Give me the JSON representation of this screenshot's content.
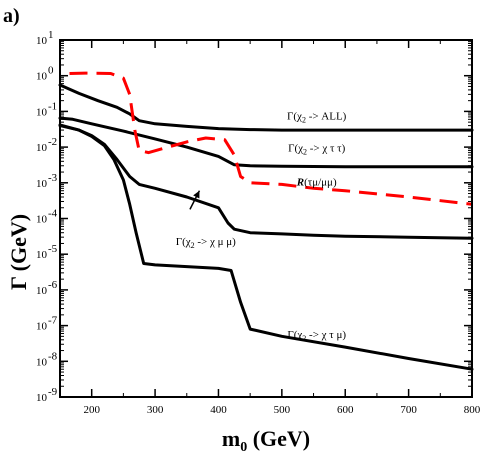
{
  "chart_data": {
    "type": "line",
    "panel_label": "a)",
    "xlabel": "m",
    "xlabel_sub": "0",
    "xlabel_unit": " (GeV)",
    "ylabel": "Γ  (GeV)",
    "xlim": [
      150,
      800
    ],
    "ylim_log10": [
      -9,
      1
    ],
    "y_scale": "log",
    "x_ticks": [
      200,
      300,
      400,
      500,
      600,
      700,
      800
    ],
    "y_ticks": [
      {
        "exp": -9,
        "label": "10",
        "sup": "-9"
      },
      {
        "exp": -8,
        "label": "10",
        "sup": "-8"
      },
      {
        "exp": -7,
        "label": "10",
        "sup": "-7"
      },
      {
        "exp": -6,
        "label": "10",
        "sup": "-6"
      },
      {
        "exp": -5,
        "label": "10",
        "sup": "-5"
      },
      {
        "exp": -4,
        "label": "10",
        "sup": "-4"
      },
      {
        "exp": -3,
        "label": "10",
        "sup": "-3"
      },
      {
        "exp": -2,
        "label": "10",
        "sup": "-2"
      },
      {
        "exp": -1,
        "label": "10",
        "sup": "-1"
      },
      {
        "exp": 0,
        "label": "10",
        "sup": "0"
      },
      {
        "exp": 1,
        "label": "10",
        "sup": "1"
      }
    ],
    "grid": false,
    "series": [
      {
        "key": "all",
        "color": "#000000",
        "dashed": false,
        "annotation": {
          "pre": "Γ(χ",
          "sub": "2",
          "post": " -> ALL)",
          "x": 555,
          "y": 0.06
        },
        "points": [
          [
            150,
            0.55
          ],
          [
            180,
            0.32
          ],
          [
            210,
            0.2
          ],
          [
            240,
            0.13
          ],
          [
            260,
            0.085
          ],
          [
            275,
            0.055
          ],
          [
            300,
            0.045
          ],
          [
            350,
            0.038
          ],
          [
            400,
            0.033
          ],
          [
            450,
            0.031
          ],
          [
            500,
            0.03
          ],
          [
            600,
            0.03
          ],
          [
            700,
            0.03
          ],
          [
            800,
            0.03
          ]
        ]
      },
      {
        "key": "tautau",
        "color": "#000000",
        "dashed": false,
        "annotation": {
          "pre": "Γ(χ",
          "sub": "2",
          "post": " -> χ τ τ)",
          "x": 555,
          "y": 0.0075
        },
        "points": [
          [
            150,
            0.065
          ],
          [
            170,
            0.06
          ],
          [
            200,
            0.045
          ],
          [
            250,
            0.028
          ],
          [
            300,
            0.017
          ],
          [
            350,
            0.01
          ],
          [
            400,
            0.0055
          ],
          [
            425,
            0.0032
          ],
          [
            450,
            0.003
          ],
          [
            500,
            0.0029
          ],
          [
            600,
            0.0028
          ],
          [
            700,
            0.0028
          ],
          [
            800,
            0.0028
          ]
        ]
      },
      {
        "key": "mumu",
        "color": "#000000",
        "dashed": false,
        "annotation": {
          "pre": "Γ(χ",
          "sub": "2",
          "post": " -> χ μ μ)",
          "x": 380,
          "y": 1.8e-05
        },
        "points": [
          [
            150,
            0.042
          ],
          [
            180,
            0.03
          ],
          [
            200,
            0.021
          ],
          [
            220,
            0.012
          ],
          [
            240,
            0.0045
          ],
          [
            260,
            0.0015
          ],
          [
            275,
            0.0009
          ],
          [
            300,
            0.0007
          ],
          [
            350,
            0.0004
          ],
          [
            400,
            0.0002
          ],
          [
            415,
            7.5e-05
          ],
          [
            425,
            5e-05
          ],
          [
            450,
            4e-05
          ],
          [
            500,
            3.7e-05
          ],
          [
            550,
            3.4e-05
          ],
          [
            600,
            3.2e-05
          ],
          [
            700,
            3e-05
          ],
          [
            800,
            2.8e-05
          ]
        ]
      },
      {
        "key": "taumu",
        "color": "#000000",
        "dashed": false,
        "annotation": {
          "pre": "Γ(χ",
          "sub": "2",
          "post": " -> χ τ μ)",
          "x": 555,
          "y": 4.5e-08
        },
        "points": [
          [
            150,
            0.04
          ],
          [
            180,
            0.03
          ],
          [
            200,
            0.02
          ],
          [
            220,
            0.011
          ],
          [
            235,
            0.0045
          ],
          [
            250,
            0.0012
          ],
          [
            260,
            0.00025
          ],
          [
            270,
            4e-05
          ],
          [
            282,
            5.5e-06
          ],
          [
            300,
            5e-06
          ],
          [
            350,
            4.5e-06
          ],
          [
            400,
            4e-06
          ],
          [
            420,
            3.5e-06
          ],
          [
            435,
            4.5e-07
          ],
          [
            450,
            8e-08
          ],
          [
            500,
            5e-08
          ],
          [
            600,
            2.5e-08
          ],
          [
            700,
            1.2e-08
          ],
          [
            800,
            6e-09
          ]
        ]
      },
      {
        "key": "ratio",
        "color": "#ff0000",
        "dashed": true,
        "annotation": {
          "pre": "R",
          "sub": "",
          "post": "(τμ/μμ)",
          "x": 555,
          "y": 0.00085
        },
        "points": [
          [
            165,
            1.15
          ],
          [
            190,
            1.18
          ],
          [
            230,
            1.15
          ],
          [
            250,
            0.85
          ],
          [
            260,
            0.3
          ],
          [
            268,
            0.03
          ],
          [
            275,
            0.008
          ],
          [
            290,
            0.007
          ],
          [
            320,
            0.01
          ],
          [
            350,
            0.014
          ],
          [
            380,
            0.018
          ],
          [
            410,
            0.016
          ],
          [
            425,
            0.006
          ],
          [
            435,
            0.0015
          ],
          [
            450,
            0.001
          ],
          [
            500,
            0.0009
          ],
          [
            550,
            0.0007
          ],
          [
            600,
            0.0006
          ],
          [
            700,
            0.0004
          ],
          [
            800,
            0.00025
          ]
        ]
      }
    ],
    "arrow": {
      "from": [
        355,
        0.00018
      ],
      "to": [
        370,
        0.0006
      ]
    }
  }
}
